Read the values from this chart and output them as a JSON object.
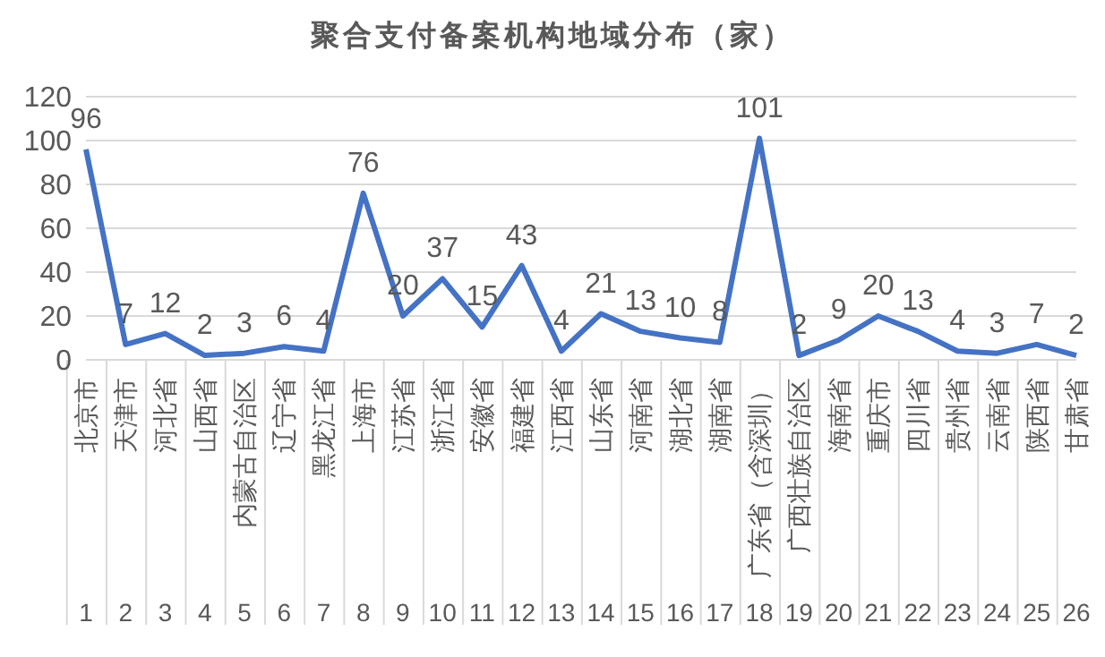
{
  "chart_data": {
    "type": "line",
    "title": "聚合支付备案机构地域分布（家）",
    "categories": [
      "北京市",
      "天津市",
      "河北省",
      "山西省",
      "内蒙古自治区",
      "辽宁省",
      "黑龙江省",
      "上海市",
      "江苏省",
      "浙江省",
      "安徽省",
      "福建省",
      "江西省",
      "山东省",
      "河南省",
      "湖北省",
      "湖南省",
      "广东省（含深圳）",
      "广西壮族自治区",
      "海南省",
      "重庆市",
      "四川省",
      "贵州省",
      "云南省",
      "陕西省",
      "甘肃省"
    ],
    "series": [
      {
        "color": "#4472c4",
        "values": [
          96,
          7,
          12,
          2,
          3,
          6,
          4,
          76,
          20,
          37,
          15,
          43,
          4,
          21,
          13,
          10,
          8,
          101,
          2,
          9,
          20,
          13,
          4,
          3,
          7,
          2
        ]
      }
    ],
    "ylim": [
      0,
      120
    ],
    "yticks": [
      0,
      20,
      40,
      60,
      80,
      100,
      120
    ],
    "grid": "y",
    "legend": false,
    "marker": "none",
    "line_style": "solid",
    "data_labels": true,
    "annotations": [
      "1",
      "2",
      "3",
      "4",
      "5",
      "6",
      "7",
      "8",
      "9",
      "10",
      "11",
      "12",
      "13",
      "14",
      "15",
      "16",
      "17",
      "18",
      "19",
      "20",
      "21",
      "22",
      "23",
      "24",
      "25",
      "26"
    ]
  }
}
